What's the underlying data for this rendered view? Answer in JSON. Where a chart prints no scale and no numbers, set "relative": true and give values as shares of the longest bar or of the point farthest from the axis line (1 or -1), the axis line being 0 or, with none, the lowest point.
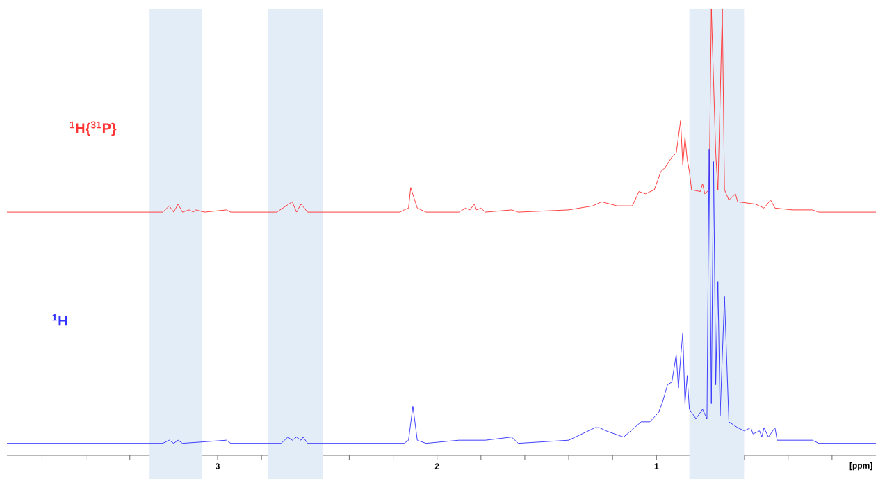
{
  "chart_data": {
    "type": "line",
    "relative": true,
    "xlim": [
      3.96,
      0.0
    ],
    "xlabel": "[ppm]",
    "xticks": [
      {
        "value": 3.8,
        "label": null
      },
      {
        "value": 3.6,
        "label": null
      },
      {
        "value": 3.4,
        "label": null
      },
      {
        "value": 3.2,
        "label": null
      },
      3,
      {
        "value": 2.8,
        "label": null
      },
      {
        "value": 2.6,
        "label": null
      },
      {
        "value": 2.4,
        "label": null
      },
      {
        "value": 2.2,
        "label": null
      },
      2,
      {
        "value": 1.8,
        "label": null
      },
      {
        "value": 1.6,
        "label": null
      },
      {
        "value": 1.4,
        "label": null
      },
      {
        "value": 1.2,
        "label": null
      },
      1,
      {
        "value": 0.8,
        "label": null
      },
      {
        "value": 0.6,
        "label": null
      },
      {
        "value": 0.4,
        "label": null
      },
      {
        "value": 0.2,
        "label": null
      }
    ],
    "bands": [
      {
        "axis": "x",
        "from": 3.31,
        "to": 3.07,
        "color": "#e3edf7"
      },
      {
        "axis": "x",
        "from": 2.77,
        "to": 2.52,
        "color": "#e3edf7"
      },
      {
        "axis": "x",
        "from": 0.85,
        "to": 0.6,
        "color": "#e3edf7"
      }
    ],
    "series": [
      {
        "name": "$^{1}$H{$^{31}$P}",
        "color": "#ff3333",
        "x": [
          3.96,
          3.36,
          3.25,
          3.22,
          3.2,
          3.18,
          3.16,
          3.13,
          3.11,
          3.1,
          3.06,
          2.96,
          2.94,
          2.73,
          2.66,
          2.64,
          2.62,
          2.59,
          2.17,
          2.15,
          2.13,
          2.12,
          2.09,
          2.05,
          1.9,
          1.87,
          1.85,
          1.83,
          1.82,
          1.8,
          1.78,
          1.66,
          1.63,
          1.4,
          1.29,
          1.25,
          1.18,
          1.11,
          1.08,
          1.05,
          1.01,
          0.98,
          0.96,
          0.93,
          0.91,
          0.89,
          0.88,
          0.87,
          0.86,
          0.85,
          0.84,
          0.8,
          0.79,
          0.78,
          0.76,
          0.75,
          0.73,
          0.72,
          0.7,
          0.69,
          0.67,
          0.64,
          0.63,
          0.55,
          0.51,
          0.48,
          0.46,
          0.38,
          0.29,
          0.26,
          0.0
        ],
        "values": [
          0.545,
          0.545,
          0.545,
          0.559,
          0.545,
          0.563,
          0.545,
          0.55,
          0.545,
          0.55,
          0.545,
          0.55,
          0.545,
          0.545,
          0.568,
          0.545,
          0.563,
          0.545,
          0.545,
          0.55,
          0.554,
          0.6,
          0.554,
          0.545,
          0.545,
          0.554,
          0.55,
          0.563,
          0.55,
          0.554,
          0.545,
          0.55,
          0.545,
          0.55,
          0.559,
          0.568,
          0.559,
          0.559,
          0.591,
          0.586,
          0.595,
          0.636,
          0.645,
          0.668,
          0.677,
          0.75,
          0.65,
          0.713,
          0.663,
          0.636,
          0.595,
          0.591,
          0.609,
          0.586,
          0.595,
          1,
          0.677,
          0.595,
          1,
          0.595,
          0.572,
          0.586,
          0.568,
          0.563,
          0.554,
          0.572,
          0.554,
          0.55,
          0.55,
          0.545,
          0.545
        ]
      },
      {
        "name": "$^{1}$H",
        "color": "#3333ff",
        "x": [
          3.96,
          3.25,
          3.22,
          3.2,
          3.18,
          3.16,
          2.96,
          2.94,
          2.71,
          2.68,
          2.66,
          2.64,
          2.62,
          2.61,
          2.59,
          2.15,
          2.13,
          2.11,
          2.09,
          2.05,
          1.9,
          1.78,
          1.66,
          1.63,
          1.4,
          1.28,
          1.26,
          1.23,
          1.15,
          1.1,
          1.07,
          1.03,
          0.99,
          0.97,
          0.95,
          0.93,
          0.91,
          0.9,
          0.89,
          0.88,
          0.87,
          0.86,
          0.85,
          0.82,
          0.79,
          0.77,
          0.76,
          0.75,
          0.74,
          0.73,
          0.72,
          0.71,
          0.69,
          0.67,
          0.63,
          0.6,
          0.57,
          0.56,
          0.53,
          0.52,
          0.51,
          0.49,
          0.46,
          0.45,
          0.29,
          0.26,
          0.0
        ],
        "values": [
          0.027,
          0.027,
          0.034,
          0.027,
          0.034,
          0.027,
          0.034,
          0.027,
          0.027,
          0.041,
          0.034,
          0.041,
          0.034,
          0.041,
          0.027,
          0.027,
          0.034,
          0.11,
          0.034,
          0.027,
          0.034,
          0.034,
          0.041,
          0.027,
          0.034,
          0.062,
          0.062,
          0.055,
          0.041,
          0.062,
          0.075,
          0.075,
          0.096,
          0.123,
          0.158,
          0.164,
          0.226,
          0.151,
          0.219,
          0.274,
          0.116,
          0.178,
          0.103,
          0.082,
          0.103,
          0.082,
          0.685,
          0.116,
          0.658,
          0.158,
          0.39,
          0.089,
          0.356,
          0.075,
          0.062,
          0.055,
          0.062,
          0.048,
          0.055,
          0.041,
          0.062,
          0.041,
          0.062,
          0.034,
          0.034,
          0.027,
          0.027
        ]
      }
    ]
  }
}
